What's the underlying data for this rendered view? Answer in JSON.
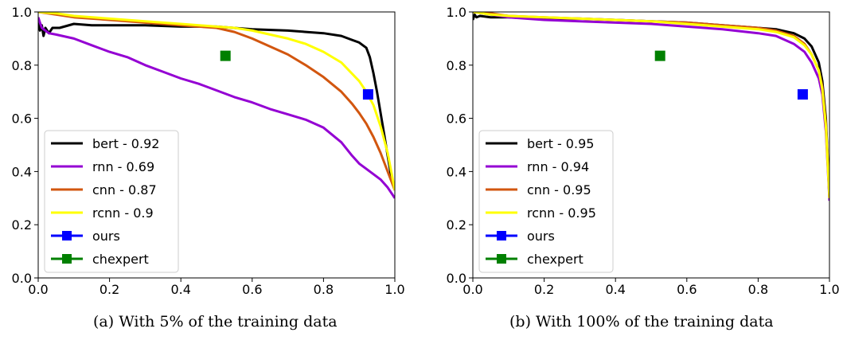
{
  "chart_data": [
    {
      "type": "line",
      "caption": "(a) With 5% of the training data",
      "xlim": [
        0.0,
        1.0
      ],
      "ylim": [
        0.0,
        1.0
      ],
      "xticks": [
        "0.0",
        "0.2",
        "0.4",
        "0.6",
        "0.8",
        "1.0"
      ],
      "yticks": [
        "0.0",
        "0.2",
        "0.4",
        "0.6",
        "0.8",
        "1.0"
      ],
      "legend_position": "lower-left",
      "grid": false,
      "series": [
        {
          "name": "bert - 0.92",
          "color": "#000000",
          "points": [
            [
              0.0,
              0.97
            ],
            [
              0.005,
              0.93
            ],
            [
              0.01,
              0.95
            ],
            [
              0.015,
              0.91
            ],
            [
              0.02,
              0.94
            ],
            [
              0.03,
              0.92
            ],
            [
              0.04,
              0.94
            ],
            [
              0.06,
              0.94
            ],
            [
              0.1,
              0.955
            ],
            [
              0.15,
              0.95
            ],
            [
              0.2,
              0.95
            ],
            [
              0.3,
              0.95
            ],
            [
              0.4,
              0.945
            ],
            [
              0.5,
              0.945
            ],
            [
              0.6,
              0.935
            ],
            [
              0.7,
              0.93
            ],
            [
              0.8,
              0.92
            ],
            [
              0.85,
              0.91
            ],
            [
              0.88,
              0.895
            ],
            [
              0.9,
              0.885
            ],
            [
              0.92,
              0.865
            ],
            [
              0.93,
              0.83
            ],
            [
              0.94,
              0.77
            ],
            [
              0.95,
              0.7
            ],
            [
              0.96,
              0.62
            ],
            [
              0.97,
              0.54
            ],
            [
              0.98,
              0.46
            ],
            [
              0.99,
              0.38
            ],
            [
              1.0,
              0.33
            ]
          ]
        },
        {
          "name": "rnn - 0.69",
          "color": "#9400D3",
          "points": [
            [
              0.0,
              0.98
            ],
            [
              0.005,
              0.96
            ],
            [
              0.01,
              0.94
            ],
            [
              0.02,
              0.93
            ],
            [
              0.03,
              0.92
            ],
            [
              0.05,
              0.915
            ],
            [
              0.1,
              0.9
            ],
            [
              0.15,
              0.875
            ],
            [
              0.2,
              0.85
            ],
            [
              0.25,
              0.83
            ],
            [
              0.3,
              0.8
            ],
            [
              0.35,
              0.775
            ],
            [
              0.4,
              0.75
            ],
            [
              0.45,
              0.73
            ],
            [
              0.5,
              0.705
            ],
            [
              0.55,
              0.68
            ],
            [
              0.6,
              0.66
            ],
            [
              0.65,
              0.635
            ],
            [
              0.7,
              0.615
            ],
            [
              0.75,
              0.595
            ],
            [
              0.8,
              0.565
            ],
            [
              0.85,
              0.51
            ],
            [
              0.88,
              0.46
            ],
            [
              0.9,
              0.43
            ],
            [
              0.92,
              0.41
            ],
            [
              0.94,
              0.39
            ],
            [
              0.96,
              0.37
            ],
            [
              0.98,
              0.34
            ],
            [
              1.0,
              0.3
            ]
          ]
        },
        {
          "name": "cnn - 0.87",
          "color": "#D2560F",
          "points": [
            [
              0.0,
              1.0
            ],
            [
              0.05,
              0.99
            ],
            [
              0.1,
              0.98
            ],
            [
              0.2,
              0.97
            ],
            [
              0.3,
              0.96
            ],
            [
              0.4,
              0.95
            ],
            [
              0.45,
              0.945
            ],
            [
              0.5,
              0.94
            ],
            [
              0.55,
              0.925
            ],
            [
              0.6,
              0.9
            ],
            [
              0.65,
              0.87
            ],
            [
              0.7,
              0.84
            ],
            [
              0.75,
              0.8
            ],
            [
              0.8,
              0.755
            ],
            [
              0.85,
              0.7
            ],
            [
              0.88,
              0.655
            ],
            [
              0.9,
              0.62
            ],
            [
              0.92,
              0.58
            ],
            [
              0.94,
              0.53
            ],
            [
              0.96,
              0.47
            ],
            [
              0.98,
              0.4
            ],
            [
              1.0,
              0.33
            ]
          ]
        },
        {
          "name": "rcnn - 0.9",
          "color": "#FFFF00",
          "points": [
            [
              0.0,
              1.0
            ],
            [
              0.05,
              0.995
            ],
            [
              0.1,
              0.985
            ],
            [
              0.2,
              0.975
            ],
            [
              0.3,
              0.965
            ],
            [
              0.4,
              0.955
            ],
            [
              0.5,
              0.945
            ],
            [
              0.55,
              0.94
            ],
            [
              0.6,
              0.93
            ],
            [
              0.65,
              0.915
            ],
            [
              0.7,
              0.9
            ],
            [
              0.75,
              0.88
            ],
            [
              0.8,
              0.85
            ],
            [
              0.85,
              0.81
            ],
            [
              0.9,
              0.74
            ],
            [
              0.92,
              0.7
            ],
            [
              0.94,
              0.65
            ],
            [
              0.96,
              0.57
            ],
            [
              0.98,
              0.47
            ],
            [
              1.0,
              0.33
            ]
          ]
        }
      ],
      "markers": [
        {
          "name": "ours",
          "color": "#0000FF",
          "x": 0.925,
          "y": 0.69
        },
        {
          "name": "chexpert",
          "color": "#008000",
          "x": 0.525,
          "y": 0.835
        }
      ]
    },
    {
      "type": "line",
      "caption": "(b) With 100% of the training data",
      "xlim": [
        0.0,
        1.0
      ],
      "ylim": [
        0.0,
        1.0
      ],
      "xticks": [
        "0.0",
        "0.2",
        "0.4",
        "0.6",
        "0.8",
        "1.0"
      ],
      "yticks": [
        "0.0",
        "0.2",
        "0.4",
        "0.6",
        "0.8",
        "1.0"
      ],
      "legend_position": "lower-left",
      "grid": false,
      "series": [
        {
          "name": "bert - 0.95",
          "color": "#000000",
          "points": [
            [
              0.0,
              0.97
            ],
            [
              0.005,
              0.99
            ],
            [
              0.01,
              0.98
            ],
            [
              0.02,
              0.985
            ],
            [
              0.05,
              0.98
            ],
            [
              0.1,
              0.98
            ],
            [
              0.2,
              0.975
            ],
            [
              0.3,
              0.975
            ],
            [
              0.4,
              0.97
            ],
            [
              0.5,
              0.965
            ],
            [
              0.6,
              0.96
            ],
            [
              0.7,
              0.95
            ],
            [
              0.8,
              0.94
            ],
            [
              0.85,
              0.935
            ],
            [
              0.9,
              0.92
            ],
            [
              0.93,
              0.9
            ],
            [
              0.95,
              0.87
            ],
            [
              0.97,
              0.81
            ],
            [
              0.98,
              0.74
            ],
            [
              0.99,
              0.6
            ],
            [
              0.995,
              0.45
            ],
            [
              1.0,
              0.3
            ]
          ]
        },
        {
          "name": "rnn - 0.94",
          "color": "#9400D3",
          "points": [
            [
              0.0,
              1.0
            ],
            [
              0.05,
              0.99
            ],
            [
              0.1,
              0.98
            ],
            [
              0.2,
              0.97
            ],
            [
              0.3,
              0.965
            ],
            [
              0.4,
              0.96
            ],
            [
              0.5,
              0.955
            ],
            [
              0.6,
              0.945
            ],
            [
              0.7,
              0.935
            ],
            [
              0.8,
              0.92
            ],
            [
              0.85,
              0.91
            ],
            [
              0.9,
              0.88
            ],
            [
              0.93,
              0.85
            ],
            [
              0.95,
              0.81
            ],
            [
              0.97,
              0.75
            ],
            [
              0.98,
              0.69
            ],
            [
              0.99,
              0.55
            ],
            [
              0.995,
              0.42
            ],
            [
              1.0,
              0.29
            ]
          ]
        },
        {
          "name": "cnn - 0.95",
          "color": "#D2560F",
          "points": [
            [
              0.0,
              1.0
            ],
            [
              0.05,
              0.995
            ],
            [
              0.1,
              0.985
            ],
            [
              0.2,
              0.98
            ],
            [
              0.3,
              0.975
            ],
            [
              0.4,
              0.97
            ],
            [
              0.5,
              0.965
            ],
            [
              0.6,
              0.96
            ],
            [
              0.7,
              0.95
            ],
            [
              0.8,
              0.94
            ],
            [
              0.85,
              0.93
            ],
            [
              0.9,
              0.91
            ],
            [
              0.93,
              0.88
            ],
            [
              0.95,
              0.84
            ],
            [
              0.97,
              0.78
            ],
            [
              0.98,
              0.72
            ],
            [
              0.99,
              0.58
            ],
            [
              0.995,
              0.44
            ],
            [
              1.0,
              0.3
            ]
          ]
        },
        {
          "name": "rcnn - 0.95",
          "color": "#FFFF00",
          "points": [
            [
              0.0,
              1.0
            ],
            [
              0.05,
              0.99
            ],
            [
              0.1,
              0.985
            ],
            [
              0.2,
              0.98
            ],
            [
              0.3,
              0.975
            ],
            [
              0.4,
              0.97
            ],
            [
              0.5,
              0.965
            ],
            [
              0.6,
              0.955
            ],
            [
              0.7,
              0.945
            ],
            [
              0.8,
              0.935
            ],
            [
              0.85,
              0.925
            ],
            [
              0.9,
              0.905
            ],
            [
              0.93,
              0.875
            ],
            [
              0.95,
              0.84
            ],
            [
              0.97,
              0.78
            ],
            [
              0.98,
              0.71
            ],
            [
              0.99,
              0.57
            ],
            [
              0.995,
              0.43
            ],
            [
              1.0,
              0.3
            ]
          ]
        }
      ],
      "markers": [
        {
          "name": "ours",
          "color": "#0000FF",
          "x": 0.925,
          "y": 0.69
        },
        {
          "name": "chexpert",
          "color": "#008000",
          "x": 0.525,
          "y": 0.835
        }
      ]
    }
  ]
}
